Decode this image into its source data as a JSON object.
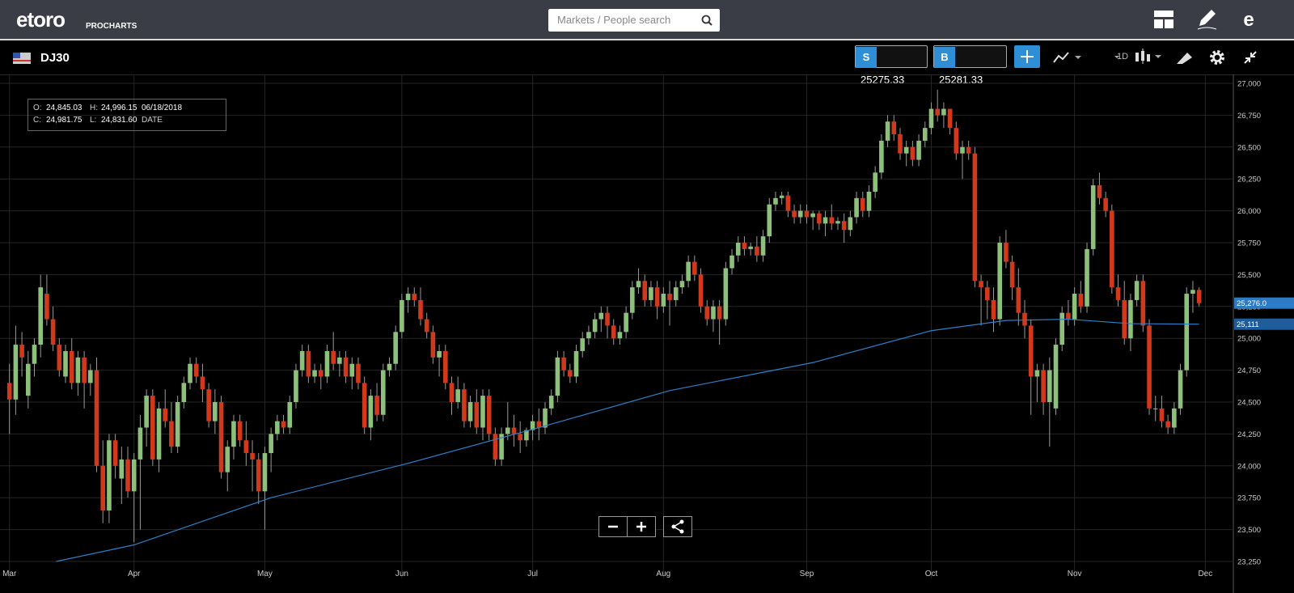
{
  "header": {
    "logo": "etoro",
    "product": "PROCHARTS",
    "search_placeholder": "Markets / People search"
  },
  "toolbar": {
    "symbol": "DJ30",
    "sell_label": "S",
    "sell_price": "25275.33",
    "buy_label": "B",
    "buy_price": "25281.33",
    "timeframe": "1D"
  },
  "info": {
    "open_label": "O:",
    "open": "24,845.03",
    "high_label": "H:",
    "high": "24,996.15",
    "date": "06/18/2018",
    "close_label": "C:",
    "close": "24,981.75",
    "low_label": "L:",
    "low": "24,831.60",
    "date_label": "DATE"
  },
  "chart_data": {
    "type": "candlestick",
    "up_color": "#8dc07a",
    "down_color": "#d0391b",
    "wick_color": "#9a9a9a",
    "grid": true,
    "xlim": [
      -1,
      196.5
    ],
    "xticks": [
      {
        "value": 0,
        "label": "Mar"
      },
      {
        "value": 20,
        "label": "Apr"
      },
      {
        "value": 41,
        "label": "May"
      },
      {
        "value": 63,
        "label": "Jun"
      },
      {
        "value": 84,
        "label": "Jul"
      },
      {
        "value": 105,
        "label": "Aug"
      },
      {
        "value": 128,
        "label": "Sep"
      },
      {
        "value": 148,
        "label": "Oct"
      },
      {
        "value": 171,
        "label": "Nov"
      },
      {
        "value": 192,
        "label": "Dec"
      }
    ],
    "ylim": [
      23250,
      27000
    ],
    "yticks": [
      {
        "value": 23250,
        "label": "23,250"
      },
      {
        "value": 23500,
        "label": "23,500"
      },
      {
        "value": 23750,
        "label": "23,750"
      },
      {
        "value": 24000,
        "label": "24,000"
      },
      {
        "value": 24250,
        "label": "24,250"
      },
      {
        "value": 24500,
        "label": "24,500"
      },
      {
        "value": 24750,
        "label": "24,750"
      },
      {
        "value": 25000,
        "label": "25,000"
      },
      {
        "value": 25250,
        "label": "25,250"
      },
      {
        "value": 25500,
        "label": "25,500"
      },
      {
        "value": 25750,
        "label": "25,750"
      },
      {
        "value": 26000,
        "label": "26,000"
      },
      {
        "value": 26250,
        "label": "26,250"
      },
      {
        "value": 26500,
        "label": "26,500"
      },
      {
        "value": 26750,
        "label": "26,750"
      },
      {
        "value": 27000,
        "label": "27,000"
      }
    ],
    "ohlc": [
      [
        24650,
        24800,
        24250,
        24520
      ],
      [
        24520,
        25100,
        24400,
        24950
      ],
      [
        24950,
        25050,
        24700,
        24850
      ],
      [
        24550,
        24900,
        24450,
        24800
      ],
      [
        24800,
        25000,
        24700,
        24950
      ],
      [
        24950,
        25500,
        24850,
        25400
      ],
      [
        25350,
        25500,
        25100,
        25150
      ],
      [
        25150,
        25250,
        24900,
        24950
      ],
      [
        24950,
        25000,
        24700,
        24750
      ],
      [
        24700,
        24950,
        24650,
        24900
      ],
      [
        24900,
        25000,
        24600,
        24650
      ],
      [
        24650,
        24900,
        24550,
        24850
      ],
      [
        24850,
        24900,
        24450,
        24650
      ],
      [
        24650,
        24800,
        24550,
        24750
      ],
      [
        24750,
        24850,
        23950,
        24000
      ],
      [
        24000,
        24200,
        23550,
        23650
      ],
      [
        23650,
        24250,
        23550,
        24200
      ],
      [
        24200,
        24250,
        23900,
        24000
      ],
      [
        23900,
        24150,
        23700,
        24050
      ],
      [
        24050,
        24150,
        23750,
        23800
      ],
      [
        23800,
        24100,
        23400,
        24050
      ],
      [
        24050,
        24400,
        23500,
        24300
      ],
      [
        24300,
        24600,
        24150,
        24550
      ],
      [
        24550,
        24600,
        24000,
        24050
      ],
      [
        24050,
        24500,
        23950,
        24450
      ],
      [
        24450,
        24600,
        24300,
        24350
      ],
      [
        24350,
        24500,
        24100,
        24150
      ],
      [
        24150,
        24550,
        24100,
        24500
      ],
      [
        24500,
        24700,
        24450,
        24650
      ],
      [
        24650,
        24850,
        24600,
        24800
      ],
      [
        24800,
        24850,
        24650,
        24700
      ],
      [
        24700,
        24800,
        24500,
        24600
      ],
      [
        24600,
        24650,
        24300,
        24350
      ],
      [
        24350,
        24600,
        24250,
        24500
      ],
      [
        24500,
        24550,
        23900,
        23950
      ],
      [
        23950,
        24200,
        23800,
        24150
      ],
      [
        24150,
        24400,
        24050,
        24350
      ],
      [
        24350,
        24400,
        24150,
        24200
      ],
      [
        24200,
        24350,
        24000,
        24100
      ],
      [
        24100,
        24200,
        23800,
        24050
      ],
      [
        24050,
        24100,
        23700,
        23800
      ],
      [
        23800,
        24150,
        23500,
        24100
      ],
      [
        24100,
        24300,
        23950,
        24250
      ],
      [
        24250,
        24400,
        24200,
        24350
      ],
      [
        24350,
        24400,
        24250,
        24300
      ],
      [
        24300,
        24550,
        24250,
        24500
      ],
      [
        24500,
        24800,
        24450,
        24750
      ],
      [
        24750,
        24950,
        24700,
        24900
      ],
      [
        24900,
        24950,
        24650,
        24700
      ],
      [
        24700,
        24800,
        24650,
        24750
      ],
      [
        24750,
        24800,
        24600,
        24700
      ],
      [
        24700,
        24950,
        24650,
        24900
      ],
      [
        24900,
        25050,
        24750,
        24800
      ],
      [
        24800,
        24900,
        24700,
        24850
      ],
      [
        24850,
        24900,
        24650,
        24700
      ],
      [
        24700,
        24850,
        24600,
        24800
      ],
      [
        24800,
        24850,
        24600,
        24650
      ],
      [
        24650,
        24700,
        24250,
        24300
      ],
      [
        24300,
        24600,
        24200,
        24550
      ],
      [
        24550,
        24650,
        24350,
        24400
      ],
      [
        24400,
        24800,
        24350,
        24750
      ],
      [
        24750,
        24850,
        24700,
        24800
      ],
      [
        24800,
        25100,
        24750,
        25050
      ],
      [
        25050,
        25350,
        25000,
        25300
      ],
      [
        25300,
        25400,
        25200,
        25350
      ],
      [
        25350,
        25400,
        25250,
        25300
      ],
      [
        25300,
        25400,
        25100,
        25150
      ],
      [
        25150,
        25200,
        25000,
        25050
      ],
      [
        25050,
        25100,
        24800,
        24850
      ],
      [
        24850,
        24950,
        24700,
        24900
      ],
      [
        24900,
        24950,
        24600,
        24650
      ],
      [
        24650,
        24700,
        24400,
        24500
      ],
      [
        24500,
        24700,
        24450,
        24600
      ],
      [
        24600,
        24650,
        24300,
        24350
      ],
      [
        24350,
        24550,
        24300,
        24500
      ],
      [
        24500,
        24600,
        24250,
        24300
      ],
      [
        24300,
        24600,
        24200,
        24550
      ],
      [
        24550,
        24600,
        24200,
        24250
      ],
      [
        24250,
        24300,
        24000,
        24050
      ],
      [
        24050,
        24300,
        24000,
        24250
      ],
      [
        24250,
        24500,
        24200,
        24300
      ],
      [
        24300,
        24400,
        24150,
        24250
      ],
      [
        24250,
        24350,
        24100,
        24200
      ],
      [
        24200,
        24300,
        24150,
        24280
      ],
      [
        24280,
        24400,
        24200,
        24350
      ],
      [
        24350,
        24450,
        24200,
        24300
      ],
      [
        24300,
        24500,
        24250,
        24450
      ],
      [
        24450,
        24600,
        24400,
        24550
      ],
      [
        24550,
        24900,
        24500,
        24850
      ],
      [
        24850,
        24900,
        24700,
        24750
      ],
      [
        24750,
        24800,
        24650,
        24700
      ],
      [
        24700,
        24950,
        24650,
        24900
      ],
      [
        24900,
        25050,
        24850,
        25000
      ],
      [
        25000,
        25100,
        24950,
        25050
      ],
      [
        25050,
        25200,
        25000,
        25150
      ],
      [
        25150,
        25250,
        25050,
        25200
      ],
      [
        25200,
        25250,
        25000,
        25100
      ],
      [
        25100,
        25150,
        24950,
        25000
      ],
      [
        25000,
        25100,
        24950,
        25050
      ],
      [
        25050,
        25250,
        25000,
        25200
      ],
      [
        25200,
        25450,
        25150,
        25400
      ],
      [
        25400,
        25550,
        25350,
        25450
      ],
      [
        25450,
        25500,
        25250,
        25300
      ],
      [
        25300,
        25450,
        25250,
        25400
      ],
      [
        25400,
        25450,
        25150,
        25250
      ],
      [
        25250,
        25400,
        25200,
        25350
      ],
      [
        25350,
        25450,
        25100,
        25300
      ],
      [
        25300,
        25450,
        25250,
        25400
      ],
      [
        25400,
        25500,
        25350,
        25450
      ],
      [
        25450,
        25650,
        25400,
        25600
      ],
      [
        25600,
        25650,
        25450,
        25500
      ],
      [
        25500,
        25550,
        25200,
        25250
      ],
      [
        25250,
        25300,
        25100,
        25150
      ],
      [
        25150,
        25300,
        25050,
        25250
      ],
      [
        25250,
        25300,
        24950,
        25150
      ],
      [
        25150,
        25600,
        25100,
        25550
      ],
      [
        25550,
        25700,
        25500,
        25650
      ],
      [
        25650,
        25800,
        25600,
        25750
      ],
      [
        25750,
        25800,
        25650,
        25700
      ],
      [
        25700,
        25750,
        25650,
        25720
      ],
      [
        25720,
        25800,
        25600,
        25650
      ],
      [
        25650,
        25850,
        25600,
        25800
      ],
      [
        25800,
        26100,
        25750,
        26050
      ],
      [
        26050,
        26150,
        26000,
        26100
      ],
      [
        26100,
        26150,
        26050,
        26120
      ],
      [
        26120,
        26150,
        25950,
        26000
      ],
      [
        26000,
        26050,
        25900,
        25950
      ],
      [
        25950,
        26050,
        25900,
        26000
      ],
      [
        26000,
        26050,
        25900,
        25950
      ],
      [
        25950,
        26000,
        25850,
        25980
      ],
      [
        25980,
        26000,
        25850,
        25900
      ],
      [
        25900,
        26000,
        25800,
        25950
      ],
      [
        25950,
        26050,
        25850,
        25900
      ],
      [
        25900,
        25950,
        25850,
        25920
      ],
      [
        25920,
        25980,
        25750,
        25850
      ],
      [
        25850,
        26000,
        25800,
        25950
      ],
      [
        25950,
        26150,
        25900,
        26100
      ],
      [
        26100,
        26150,
        25950,
        26000
      ],
      [
        26000,
        26200,
        25950,
        26150
      ],
      [
        26150,
        26350,
        26100,
        26300
      ],
      [
        26300,
        26600,
        26250,
        26550
      ],
      [
        26550,
        26750,
        26500,
        26700
      ],
      [
        26700,
        26750,
        26550,
        26600
      ],
      [
        26600,
        26650,
        26400,
        26450
      ],
      [
        26450,
        26550,
        26350,
        26500
      ],
      [
        26500,
        26550,
        26350,
        26400
      ],
      [
        26400,
        26600,
        26350,
        26550
      ],
      [
        26550,
        26700,
        26500,
        26650
      ],
      [
        26650,
        26850,
        26600,
        26800
      ],
      [
        26800,
        26950,
        26700,
        26750
      ],
      [
        26750,
        26850,
        26650,
        26800
      ],
      [
        26800,
        26800,
        26600,
        26650
      ],
      [
        26650,
        26700,
        26400,
        26450
      ],
      [
        26450,
        26550,
        26250,
        26500
      ],
      [
        26500,
        26550,
        26400,
        26450
      ],
      [
        26450,
        26500,
        25400,
        25450
      ],
      [
        25450,
        25500,
        25100,
        25400
      ],
      [
        25400,
        25450,
        25150,
        25300
      ],
      [
        25300,
        25400,
        25050,
        25150
      ],
      [
        25150,
        25800,
        25100,
        25750
      ],
      [
        25750,
        25850,
        25550,
        25600
      ],
      [
        25600,
        25650,
        25300,
        25400
      ],
      [
        25400,
        25550,
        25100,
        25200
      ],
      [
        25200,
        25300,
        25000,
        25100
      ],
      [
        25100,
        25150,
        24400,
        24700
      ],
      [
        24700,
        24800,
        24500,
        24750
      ],
      [
        24750,
        24800,
        24400,
        24500
      ],
      [
        24500,
        24850,
        24150,
        24750
      ],
      [
        24450,
        25000,
        24400,
        24950
      ],
      [
        24950,
        25250,
        24900,
        25200
      ],
      [
        25200,
        25300,
        25100,
        25150
      ],
      [
        25150,
        25400,
        25100,
        25350
      ],
      [
        25350,
        25450,
        25200,
        25250
      ],
      [
        25250,
        25750,
        25200,
        25700
      ],
      [
        25700,
        26250,
        25650,
        26200
      ],
      [
        26200,
        26300,
        26050,
        26100
      ],
      [
        26100,
        26150,
        25950,
        26000
      ],
      [
        26000,
        26050,
        25350,
        25400
      ],
      [
        25400,
        25500,
        25250,
        25300
      ],
      [
        25300,
        25450,
        24950,
        25000
      ],
      [
        25000,
        25350,
        24900,
        25300
      ],
      [
        25300,
        25500,
        25250,
        25450
      ],
      [
        25450,
        25500,
        25050,
        25100
      ],
      [
        25100,
        25150,
        24400,
        24450
      ],
      [
        24450,
        24550,
        24350,
        24450
      ],
      [
        24450,
        24550,
        24300,
        24350
      ],
      [
        24350,
        24400,
        24250,
        24300
      ],
      [
        24300,
        24500,
        24250,
        24450
      ],
      [
        24450,
        24800,
        24400,
        24750
      ],
      [
        24750,
        25400,
        24700,
        25350
      ],
      [
        25350,
        25450,
        25200,
        25380
      ],
      [
        25380,
        25400,
        25250,
        25276
      ]
    ],
    "moving_average": {
      "color": "#2f80c8",
      "x": [
        7.5,
        20,
        42,
        64,
        85,
        106,
        129,
        148,
        160,
        170,
        180,
        191
      ],
      "values": [
        23250,
        23380,
        23750,
        24020,
        24300,
        24590,
        24810,
        25060,
        25140,
        25150,
        25115,
        25111
      ]
    },
    "price_labels": [
      {
        "value": 25276,
        "label": "25,276.0",
        "color": "#2d7bc4"
      },
      {
        "value": 25111,
        "label": "25,111",
        "color": "#1d5d9c"
      }
    ]
  }
}
